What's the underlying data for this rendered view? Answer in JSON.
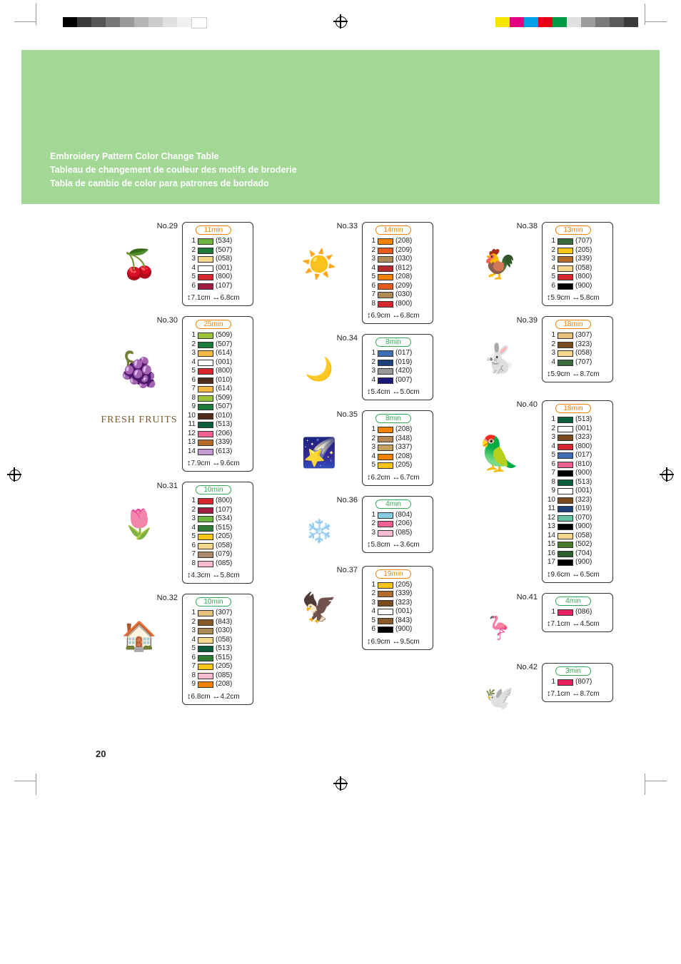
{
  "page_number": "20",
  "titles": {
    "en": "Embroidery Pattern Color Change Table",
    "fr": "Tableau de changement de couleur des motifs de broderie",
    "es": "Tabla de cambio de color para patrones de bordado"
  },
  "print_strip_left": [
    "#000000",
    "#3a3a3a",
    "#555555",
    "#777777",
    "#999999",
    "#b5b5b5",
    "#cccccc",
    "#e0e0e0",
    "#f0f0f0",
    "#ffffff"
  ],
  "print_strip_right": [
    "#f6e500",
    "#e5007f",
    "#00a0e9",
    "#e60012",
    "#009944",
    "#e0e0e0",
    "#9c9c9c",
    "#7a7a7a",
    "#5a5a5a",
    "#3a3a3a"
  ],
  "green_bg": "#a2d795",
  "patterns": {
    "p29": {
      "no": "No.29",
      "time": "11min",
      "time_color": "#f08200",
      "dims_h": "7.1cm",
      "dims_w": "6.8cm",
      "icon": "🍒",
      "colors": [
        {
          "hex": "#6cb33f",
          "code": "534"
        },
        {
          "hex": "#1e7a3a",
          "code": "507"
        },
        {
          "hex": "#f6d78b",
          "code": "058"
        },
        {
          "hex": "#ffffff",
          "code": "001"
        },
        {
          "hex": "#d7262d",
          "code": "800"
        },
        {
          "hex": "#a11d3f",
          "code": "107"
        }
      ]
    },
    "p30": {
      "no": "No.30",
      "time": "25min",
      "time_color": "#f08200",
      "dims_h": "7.9cm",
      "dims_w": "9.6cm",
      "icon": "🍇",
      "caption": "FRESH FRUITS",
      "colors": [
        {
          "hex": "#9bc53d",
          "code": "509"
        },
        {
          "hex": "#1e7a3a",
          "code": "507"
        },
        {
          "hex": "#f4b942",
          "code": "614"
        },
        {
          "hex": "#ffffff",
          "code": "001"
        },
        {
          "hex": "#d7262d",
          "code": "800"
        },
        {
          "hex": "#502e1b",
          "code": "010"
        },
        {
          "hex": "#f4b942",
          "code": "614"
        },
        {
          "hex": "#9bc53d",
          "code": "509"
        },
        {
          "hex": "#1e7a3a",
          "code": "507"
        },
        {
          "hex": "#502e1b",
          "code": "010"
        },
        {
          "hex": "#0a5c3a",
          "code": "513"
        },
        {
          "hex": "#f06292",
          "code": "206"
        },
        {
          "hex": "#b36b2b",
          "code": "339"
        },
        {
          "hex": "#c49bd6",
          "code": "613"
        }
      ]
    },
    "p31": {
      "no": "No.31",
      "time": "10min",
      "time_color": "#33a852",
      "dims_h": "4.3cm",
      "dims_w": "5.8cm",
      "icon": "🌷",
      "colors": [
        {
          "hex": "#d7262d",
          "code": "800"
        },
        {
          "hex": "#a11d3f",
          "code": "107"
        },
        {
          "hex": "#6cb33f",
          "code": "534"
        },
        {
          "hex": "#2e7d32",
          "code": "515"
        },
        {
          "hex": "#f5c518",
          "code": "205"
        },
        {
          "hex": "#f6d78b",
          "code": "058"
        },
        {
          "hex": "#b08968",
          "code": "079"
        },
        {
          "hex": "#f8bbd0",
          "code": "085"
        }
      ]
    },
    "p32": {
      "no": "No.32",
      "time": "10min",
      "time_color": "#33a852",
      "dims_h": "6.8cm",
      "dims_w": "4.2cm",
      "icon": "🏠",
      "colors": [
        {
          "hex": "#e8c07d",
          "code": "307"
        },
        {
          "hex": "#8a5a2b",
          "code": "843"
        },
        {
          "hex": "#ad8a56",
          "code": "030"
        },
        {
          "hex": "#f6d78b",
          "code": "058"
        },
        {
          "hex": "#0a5c3a",
          "code": "513"
        },
        {
          "hex": "#2e7d32",
          "code": "515"
        },
        {
          "hex": "#f5c518",
          "code": "205"
        },
        {
          "hex": "#f8bbd0",
          "code": "085"
        },
        {
          "hex": "#f08200",
          "code": "208"
        }
      ]
    },
    "p33": {
      "no": "No.33",
      "time": "14min",
      "time_color": "#f08200",
      "dims_h": "6.9cm",
      "dims_w": "6.8cm",
      "icon": "☀️",
      "colors": [
        {
          "hex": "#f08200",
          "code": "208"
        },
        {
          "hex": "#e55c1e",
          "code": "209"
        },
        {
          "hex": "#ad8a56",
          "code": "030"
        },
        {
          "hex": "#b52b2b",
          "code": "812"
        },
        {
          "hex": "#f08200",
          "code": "208"
        },
        {
          "hex": "#e55c1e",
          "code": "209"
        },
        {
          "hex": "#ad8a56",
          "code": "030"
        },
        {
          "hex": "#d7262d",
          "code": "800"
        }
      ]
    },
    "p34": {
      "no": "No.34",
      "time": "8min",
      "time_color": "#33a852",
      "dims_h": "5.4cm",
      "dims_w": "5.0cm",
      "icon": "🌙",
      "colors": [
        {
          "hex": "#3b6fb2",
          "code": "017"
        },
        {
          "hex": "#1d3f7a",
          "code": "019"
        },
        {
          "hex": "#999999",
          "code": "420"
        },
        {
          "hex": "#1a1a7a",
          "code": "007"
        }
      ]
    },
    "p35": {
      "no": "No.35",
      "time": "8min",
      "time_color": "#33a852",
      "dims_h": "6.2cm",
      "dims_w": "6.7cm",
      "icon": "🌠",
      "colors": [
        {
          "hex": "#f08200",
          "code": "208"
        },
        {
          "hex": "#b48a55",
          "code": "348"
        },
        {
          "hex": "#c9a15e",
          "code": "337"
        },
        {
          "hex": "#f08200",
          "code": "208"
        },
        {
          "hex": "#f5c518",
          "code": "205"
        }
      ]
    },
    "p36": {
      "no": "No.36",
      "time": "4min",
      "time_color": "#33a852",
      "dims_h": "5.8cm",
      "dims_w": "3.6cm",
      "icon": "❄️",
      "colors": [
        {
          "hex": "#88cce6",
          "code": "804"
        },
        {
          "hex": "#f06292",
          "code": "206"
        },
        {
          "hex": "#f8bbd0",
          "code": "085"
        }
      ]
    },
    "p37": {
      "no": "No.37",
      "time": "19min",
      "time_color": "#f08200",
      "dims_h": "6.9cm",
      "dims_w": "9.5cm",
      "icon": "🦅",
      "colors": [
        {
          "hex": "#f5c518",
          "code": "205"
        },
        {
          "hex": "#b36b2b",
          "code": "339"
        },
        {
          "hex": "#7a4b1e",
          "code": "323"
        },
        {
          "hex": "#ffffff",
          "code": "001"
        },
        {
          "hex": "#8a5a2b",
          "code": "843"
        },
        {
          "hex": "#000000",
          "code": "900"
        }
      ]
    },
    "p38": {
      "no": "No.38",
      "time": "13min",
      "time_color": "#f08200",
      "dims_h": "5.9cm",
      "dims_w": "5.8cm",
      "icon": "🐓",
      "colors": [
        {
          "hex": "#3b6b3f",
          "code": "707"
        },
        {
          "hex": "#f5c518",
          "code": "205"
        },
        {
          "hex": "#b36b2b",
          "code": "339"
        },
        {
          "hex": "#f6d78b",
          "code": "058"
        },
        {
          "hex": "#d7262d",
          "code": "800"
        },
        {
          "hex": "#000000",
          "code": "900"
        }
      ]
    },
    "p39": {
      "no": "No.39",
      "time": "18min",
      "time_color": "#f08200",
      "dims_h": "5.9cm",
      "dims_w": "8.7cm",
      "icon": "🐇",
      "colors": [
        {
          "hex": "#e8c07d",
          "code": "307"
        },
        {
          "hex": "#7a4b1e",
          "code": "323"
        },
        {
          "hex": "#f6d78b",
          "code": "058"
        },
        {
          "hex": "#3b6b3f",
          "code": "707"
        }
      ]
    },
    "p40": {
      "no": "No.40",
      "time": "18min",
      "time_color": "#f08200",
      "dims_h": "9.6cm",
      "dims_w": "6.5cm",
      "icon": "🦜",
      "colors": [
        {
          "hex": "#0a5c3a",
          "code": "513"
        },
        {
          "hex": "#ffffff",
          "code": "001"
        },
        {
          "hex": "#7a4b1e",
          "code": "323"
        },
        {
          "hex": "#d7262d",
          "code": "800"
        },
        {
          "hex": "#3b6fb2",
          "code": "017"
        },
        {
          "hex": "#f06292",
          "code": "810"
        },
        {
          "hex": "#000000",
          "code": "900"
        },
        {
          "hex": "#0a5c3a",
          "code": "513"
        },
        {
          "hex": "#ffffff",
          "code": "001"
        },
        {
          "hex": "#7a4b1e",
          "code": "323"
        },
        {
          "hex": "#1d3f7a",
          "code": "019"
        },
        {
          "hex": "#66c2a5",
          "code": "070"
        },
        {
          "hex": "#000000",
          "code": "900"
        },
        {
          "hex": "#f6d78b",
          "code": "058"
        },
        {
          "hex": "#4a7a2e",
          "code": "502"
        },
        {
          "hex": "#2e5e2e",
          "code": "704"
        },
        {
          "hex": "#000000",
          "code": "900"
        }
      ]
    },
    "p41": {
      "no": "No.41",
      "time": "4min",
      "time_color": "#33a852",
      "dims_h": "7.1cm",
      "dims_w": "4.5cm",
      "icon": "🦩",
      "colors": [
        {
          "hex": "#e91e63",
          "code": "086"
        }
      ]
    },
    "p42": {
      "no": "No.42",
      "time": "3min",
      "time_color": "#33a852",
      "dims_h": "7.1cm",
      "dims_w": "8.7cm",
      "icon": "🕊️",
      "colors": [
        {
          "hex": "#e91e5c",
          "code": "807"
        }
      ]
    }
  }
}
